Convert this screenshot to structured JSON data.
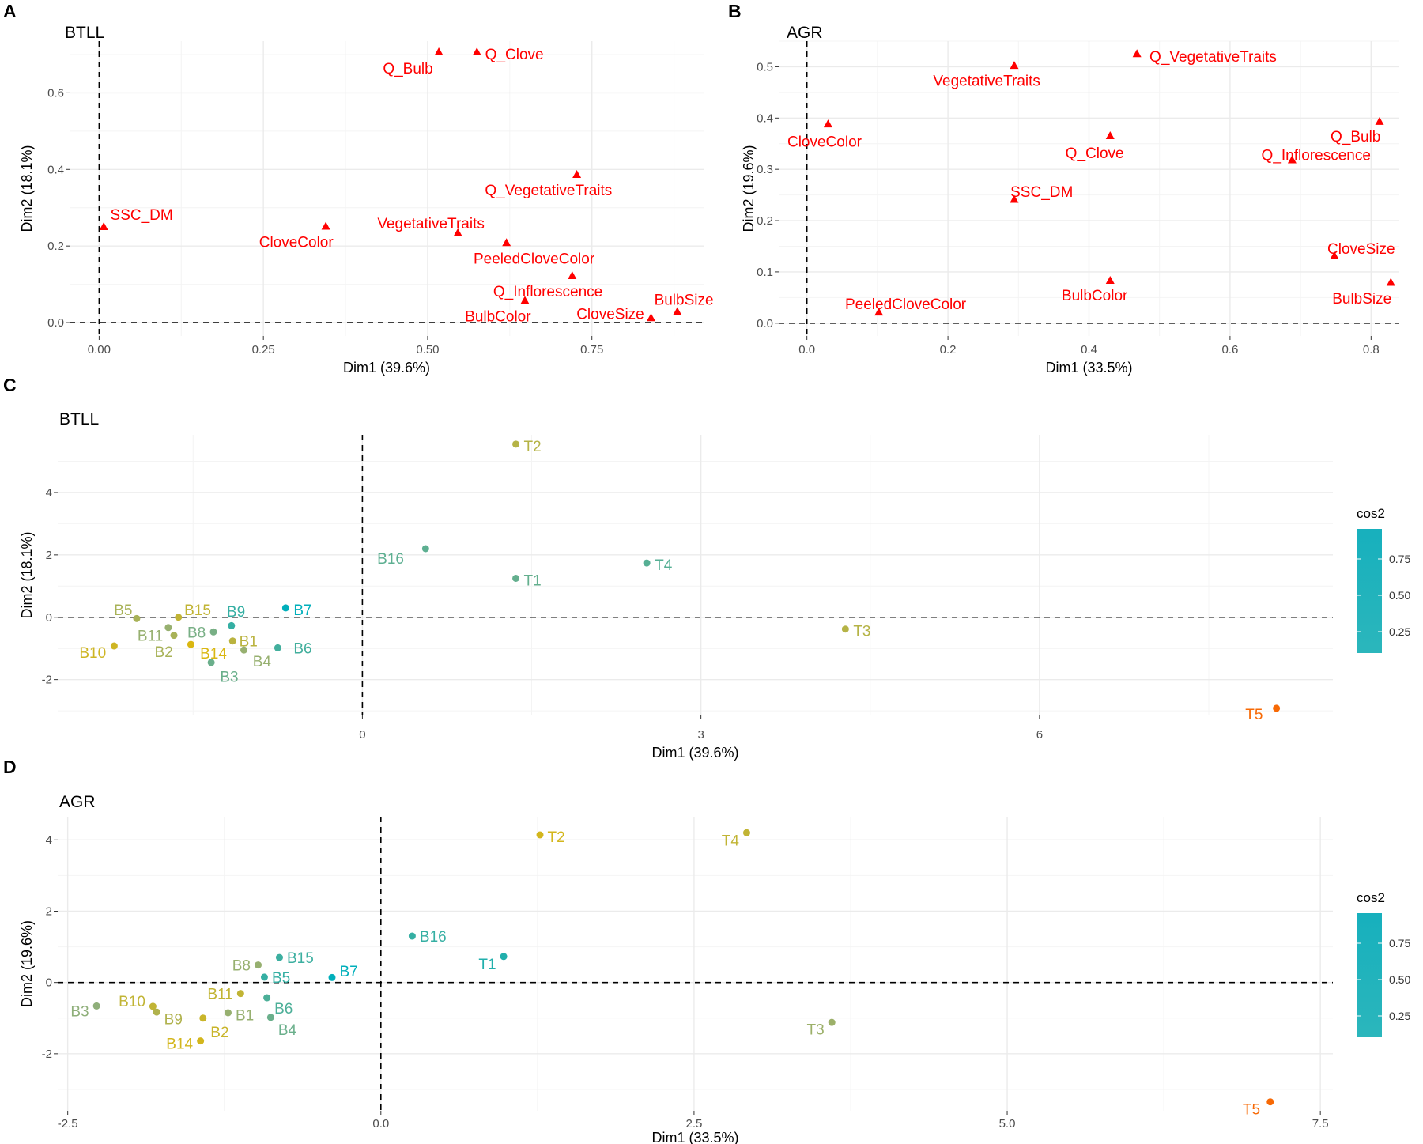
{
  "panels": {
    "A": "A",
    "B": "B",
    "C": "C",
    "D": "D"
  },
  "colors": {
    "var_marker": "#FF0000",
    "cos2_low": "#E7B800",
    "cos2_mid": "#8FAF7A",
    "cos2_high": "#00AFBB",
    "cos2_min": "#FC4E07",
    "grid": "#EBEBEB",
    "axis_text": "#4D4D4D"
  },
  "chart_data": [
    {
      "panel": "A",
      "type": "scatter",
      "title": "BTLL",
      "xlabel": "Dim1 (39.6%)",
      "ylabel": "Dim2 (18.1%)",
      "xlim": [
        -0.045,
        0.92
      ],
      "ylim": [
        -0.035,
        0.735
      ],
      "xticks": [
        {
          "v": 0,
          "l": "0.00"
        },
        {
          "v": 0.25,
          "l": "0.25"
        },
        {
          "v": 0.5,
          "l": "0.50"
        },
        {
          "v": 0.75,
          "l": "0.75"
        }
      ],
      "yticks": [
        {
          "v": 0,
          "l": "0.0"
        },
        {
          "v": 0.2,
          "l": "0.2"
        },
        {
          "v": 0.4,
          "l": "0.4"
        },
        {
          "v": 0.6,
          "l": "0.6"
        }
      ],
      "marker": "triangle",
      "points": [
        {
          "label": "SSC_DM",
          "x": 0.007,
          "y": 0.25,
          "lx": 0.017,
          "ly": 0.283,
          "anchor": "start"
        },
        {
          "label": "CloveColor",
          "x": 0.345,
          "y": 0.251,
          "lx": 0.3,
          "ly": 0.212,
          "anchor": "middle"
        },
        {
          "label": "VegetativeTraits",
          "x": 0.546,
          "y": 0.234,
          "lx": 0.505,
          "ly": 0.26,
          "anchor": "middle"
        },
        {
          "label": "Q_Bulb",
          "x": 0.517,
          "y": 0.706,
          "lx": 0.47,
          "ly": 0.665,
          "anchor": "middle"
        },
        {
          "label": "Q_Clove",
          "x": 0.575,
          "y": 0.706,
          "lx": 0.632,
          "ly": 0.702,
          "anchor": "middle"
        },
        {
          "label": "Q_VegetativeTraits",
          "x": 0.727,
          "y": 0.386,
          "lx": 0.684,
          "ly": 0.347,
          "anchor": "middle"
        },
        {
          "label": "PeeledCloveColor",
          "x": 0.62,
          "y": 0.208,
          "lx": 0.662,
          "ly": 0.168,
          "anchor": "middle"
        },
        {
          "label": "Q_Inflorescence",
          "x": 0.72,
          "y": 0.122,
          "lx": 0.683,
          "ly": 0.083,
          "anchor": "middle"
        },
        {
          "label": "BulbColor",
          "x": 0.648,
          "y": 0.057,
          "lx": 0.607,
          "ly": 0.018,
          "anchor": "middle"
        },
        {
          "label": "CloveSize",
          "x": 0.84,
          "y": 0.012,
          "lx": 0.778,
          "ly": 0.024,
          "anchor": "middle"
        },
        {
          "label": "BulbSize",
          "x": 0.88,
          "y": 0.028,
          "lx": 0.89,
          "ly": 0.061,
          "anchor": "middle"
        }
      ]
    },
    {
      "panel": "B",
      "type": "scatter",
      "title": "AGR",
      "xlabel": "Dim1 (33.5%)",
      "ylabel": "Dim2 (19.6%)",
      "xlim": [
        -0.04,
        0.84
      ],
      "ylim": [
        -0.025,
        0.55
      ],
      "xticks": [
        {
          "v": 0,
          "l": "0.0"
        },
        {
          "v": 0.2,
          "l": "0.2"
        },
        {
          "v": 0.4,
          "l": "0.4"
        },
        {
          "v": 0.6,
          "l": "0.6"
        },
        {
          "v": 0.8,
          "l": "0.8"
        }
      ],
      "yticks": [
        {
          "v": 0,
          "l": "0.0"
        },
        {
          "v": 0.1,
          "l": "0.1"
        },
        {
          "v": 0.2,
          "l": "0.2"
        },
        {
          "v": 0.3,
          "l": "0.3"
        },
        {
          "v": 0.4,
          "l": "0.4"
        },
        {
          "v": 0.5,
          "l": "0.5"
        }
      ],
      "marker": "triangle",
      "points": [
        {
          "label": "VegetativeTraits",
          "x": 0.294,
          "y": 0.502,
          "lx": 0.255,
          "ly": 0.474,
          "anchor": "middle"
        },
        {
          "label": "Q_VegetativeTraits",
          "x": 0.468,
          "y": 0.525,
          "lx": 0.576,
          "ly": 0.521,
          "anchor": "middle"
        },
        {
          "label": "CloveColor",
          "x": 0.03,
          "y": 0.388,
          "lx": 0.025,
          "ly": 0.355,
          "anchor": "middle"
        },
        {
          "label": "Q_Clove",
          "x": 0.43,
          "y": 0.365,
          "lx": 0.408,
          "ly": 0.333,
          "anchor": "middle"
        },
        {
          "label": "Q_Bulb",
          "x": 0.812,
          "y": 0.393,
          "lx": 0.778,
          "ly": 0.365,
          "anchor": "middle"
        },
        {
          "label": "Q_Inflorescence",
          "x": 0.688,
          "y": 0.318,
          "lx": 0.722,
          "ly": 0.329,
          "anchor": "middle"
        },
        {
          "label": "SSC_DM",
          "x": 0.294,
          "y": 0.241,
          "lx": 0.333,
          "ly": 0.257,
          "anchor": "middle"
        },
        {
          "label": "CloveSize",
          "x": 0.748,
          "y": 0.131,
          "lx": 0.786,
          "ly": 0.146,
          "anchor": "middle"
        },
        {
          "label": "BulbColor",
          "x": 0.43,
          "y": 0.083,
          "lx": 0.408,
          "ly": 0.055,
          "anchor": "middle"
        },
        {
          "label": "BulbSize",
          "x": 0.828,
          "y": 0.079,
          "lx": 0.787,
          "ly": 0.049,
          "anchor": "middle"
        },
        {
          "label": "PeeledCloveColor",
          "x": 0.102,
          "y": 0.021,
          "lx": 0.14,
          "ly": 0.038,
          "anchor": "middle"
        }
      ]
    },
    {
      "panel": "C",
      "type": "scatter",
      "title": "BTLL",
      "xlabel": "Dim1 (39.6%)",
      "ylabel": "Dim2 (18.1%)",
      "xlim": [
        -2.7,
        8.6
      ],
      "ylim": [
        -3.15,
        5.85
      ],
      "xticks": [
        {
          "v": 0,
          "l": "0"
        },
        {
          "v": 3,
          "l": "3"
        },
        {
          "v": 6,
          "l": "6"
        }
      ],
      "yticks": [
        {
          "v": -2,
          "l": "-2"
        },
        {
          "v": 0,
          "l": "0"
        },
        {
          "v": 2,
          "l": "2"
        },
        {
          "v": 4,
          "l": "4"
        }
      ],
      "marker": "circle",
      "legend": {
        "title": "cos2",
        "ticks": [
          "0.75",
          "0.50",
          "0.25"
        ],
        "position": "right"
      },
      "points": [
        {
          "label": "T2",
          "x": 1.36,
          "y": 5.55,
          "cos2": 0.4,
          "lx": 1.43,
          "ly": 5.5,
          "anchor": "start"
        },
        {
          "label": "B16",
          "x": 0.56,
          "y": 2.2,
          "cos2": 0.7,
          "lx": 0.25,
          "ly": 1.9,
          "anchor": "middle"
        },
        {
          "label": "T1",
          "x": 1.36,
          "y": 1.25,
          "cos2": 0.68,
          "lx": 1.43,
          "ly": 1.2,
          "anchor": "start"
        },
        {
          "label": "T4",
          "x": 2.52,
          "y": 1.74,
          "cos2": 0.72,
          "lx": 2.59,
          "ly": 1.69,
          "anchor": "start"
        },
        {
          "label": "B7",
          "x": -0.68,
          "y": 0.3,
          "cos2": 0.98,
          "lx": -0.61,
          "ly": 0.25,
          "anchor": "start"
        },
        {
          "label": "B9",
          "x": -1.16,
          "y": -0.27,
          "cos2": 0.82,
          "lx": -1.12,
          "ly": 0.2,
          "anchor": "middle"
        },
        {
          "label": "B15",
          "x": -1.63,
          "y": 0.0,
          "cos2": 0.35,
          "lx": -1.46,
          "ly": 0.25,
          "anchor": "middle"
        },
        {
          "label": "B5",
          "x": -2.0,
          "y": -0.04,
          "cos2": 0.45,
          "lx": -2.12,
          "ly": 0.25,
          "anchor": "middle"
        },
        {
          "label": "B8",
          "x": -1.32,
          "y": -0.47,
          "cos2": 0.62,
          "lx": -1.47,
          "ly": -0.47,
          "anchor": "middle"
        },
        {
          "label": "B11",
          "x": -1.72,
          "y": -0.33,
          "cos2": 0.52,
          "lx": -1.88,
          "ly": -0.58,
          "anchor": "middle"
        },
        {
          "label": "B2",
          "x": -1.67,
          "y": -0.58,
          "cos2": 0.45,
          "lx": -1.76,
          "ly": -1.1,
          "anchor": "middle"
        },
        {
          "label": "B1",
          "x": -1.15,
          "y": -0.76,
          "cos2": 0.38,
          "lx": -1.01,
          "ly": -0.76,
          "anchor": "middle"
        },
        {
          "label": "B14",
          "x": -1.52,
          "y": -0.87,
          "cos2": 0.25,
          "lx": -1.32,
          "ly": -1.15,
          "anchor": "middle"
        },
        {
          "label": "B6",
          "x": -0.75,
          "y": -0.98,
          "cos2": 0.78,
          "lx": -0.61,
          "ly": -0.98,
          "anchor": "start"
        },
        {
          "label": "B4",
          "x": -1.05,
          "y": -1.05,
          "cos2": 0.52,
          "lx": -0.89,
          "ly": -1.4,
          "anchor": "middle"
        },
        {
          "label": "B10",
          "x": -2.2,
          "y": -0.92,
          "cos2": 0.3,
          "lx": -2.39,
          "ly": -1.12,
          "anchor": "middle"
        },
        {
          "label": "B3",
          "x": -1.34,
          "y": -1.45,
          "cos2": 0.66,
          "lx": -1.18,
          "ly": -1.9,
          "anchor": "middle"
        },
        {
          "label": "T3",
          "x": 4.28,
          "y": -0.38,
          "cos2": 0.4,
          "lx": 4.35,
          "ly": -0.43,
          "anchor": "start"
        },
        {
          "label": "T5",
          "x": 8.1,
          "y": -2.92,
          "cos2": 0.05,
          "lx": 7.98,
          "ly": -3.1,
          "anchor": "end"
        }
      ]
    },
    {
      "panel": "D",
      "type": "scatter",
      "title": "AGR",
      "xlabel": "Dim1 (33.5%)",
      "ylabel": "Dim2 (19.6%)",
      "xlim": [
        -2.58,
        7.6
      ],
      "ylim": [
        -3.6,
        4.65
      ],
      "xticks": [
        {
          "v": -2.5,
          "l": "-2.5"
        },
        {
          "v": 0,
          "l": "0.0"
        },
        {
          "v": 2.5,
          "l": "2.5"
        },
        {
          "v": 5,
          "l": "5.0"
        },
        {
          "v": 7.5,
          "l": "7.5"
        }
      ],
      "yticks": [
        {
          "v": -2,
          "l": "-2"
        },
        {
          "v": 0,
          "l": "0"
        },
        {
          "v": 2,
          "l": "2"
        },
        {
          "v": 4,
          "l": "4"
        }
      ],
      "marker": "circle",
      "legend": {
        "title": "cos2",
        "ticks": [
          "0.75",
          "0.50",
          "0.25"
        ],
        "position": "right"
      },
      "points": [
        {
          "label": "T2",
          "x": 1.27,
          "y": 4.14,
          "cos2": 0.28,
          "lx": 1.33,
          "ly": 4.1,
          "anchor": "start"
        },
        {
          "label": "T4",
          "x": 2.92,
          "y": 4.2,
          "cos2": 0.35,
          "lx": 2.86,
          "ly": 4.0,
          "anchor": "end"
        },
        {
          "label": "B16",
          "x": 0.25,
          "y": 1.3,
          "cos2": 0.82,
          "lx": 0.31,
          "ly": 1.3,
          "anchor": "start"
        },
        {
          "label": "T1",
          "x": 0.98,
          "y": 0.73,
          "cos2": 0.88,
          "lx": 0.92,
          "ly": 0.53,
          "anchor": "end"
        },
        {
          "label": "B15",
          "x": -0.81,
          "y": 0.7,
          "cos2": 0.8,
          "lx": -0.75,
          "ly": 0.7,
          "anchor": "start"
        },
        {
          "label": "B8",
          "x": -0.98,
          "y": 0.49,
          "cos2": 0.52,
          "lx": -1.04,
          "ly": 0.49,
          "anchor": "end"
        },
        {
          "label": "B5",
          "x": -0.93,
          "y": 0.15,
          "cos2": 0.82,
          "lx": -0.87,
          "ly": 0.15,
          "anchor": "start"
        },
        {
          "label": "B7",
          "x": -0.39,
          "y": 0.14,
          "cos2": 0.98,
          "lx": -0.33,
          "ly": 0.33,
          "anchor": "start"
        },
        {
          "label": "B11",
          "x": -1.12,
          "y": -0.31,
          "cos2": 0.35,
          "lx": -1.18,
          "ly": -0.31,
          "anchor": "end"
        },
        {
          "label": "B6",
          "x": -0.91,
          "y": -0.43,
          "cos2": 0.75,
          "lx": -0.85,
          "ly": -0.72,
          "anchor": "start"
        },
        {
          "label": "B10",
          "x": -1.82,
          "y": -0.67,
          "cos2": 0.35,
          "lx": -1.88,
          "ly": -0.52,
          "anchor": "end"
        },
        {
          "label": "B3",
          "x": -2.27,
          "y": -0.66,
          "cos2": 0.55,
          "lx": -2.33,
          "ly": -0.8,
          "anchor": "end"
        },
        {
          "label": "B9",
          "x": -1.79,
          "y": -0.83,
          "cos2": 0.42,
          "lx": -1.73,
          "ly": -1.02,
          "anchor": "start"
        },
        {
          "label": "B1",
          "x": -1.22,
          "y": -0.85,
          "cos2": 0.52,
          "lx": -1.16,
          "ly": -0.9,
          "anchor": "start"
        },
        {
          "label": "B2",
          "x": -1.42,
          "y": -1.0,
          "cos2": 0.32,
          "lx": -1.36,
          "ly": -1.38,
          "anchor": "start"
        },
        {
          "label": "B4",
          "x": -0.88,
          "y": -0.98,
          "cos2": 0.66,
          "lx": -0.82,
          "ly": -1.32,
          "anchor": "start"
        },
        {
          "label": "B14",
          "x": -1.44,
          "y": -1.64,
          "cos2": 0.28,
          "lx": -1.5,
          "ly": -1.7,
          "anchor": "end"
        },
        {
          "label": "T3",
          "x": 3.6,
          "y": -1.12,
          "cos2": 0.5,
          "lx": 3.54,
          "ly": -1.3,
          "anchor": "end"
        },
        {
          "label": "T5",
          "x": 7.1,
          "y": -3.35,
          "cos2": 0.05,
          "lx": 7.02,
          "ly": -3.55,
          "anchor": "end"
        }
      ]
    }
  ]
}
